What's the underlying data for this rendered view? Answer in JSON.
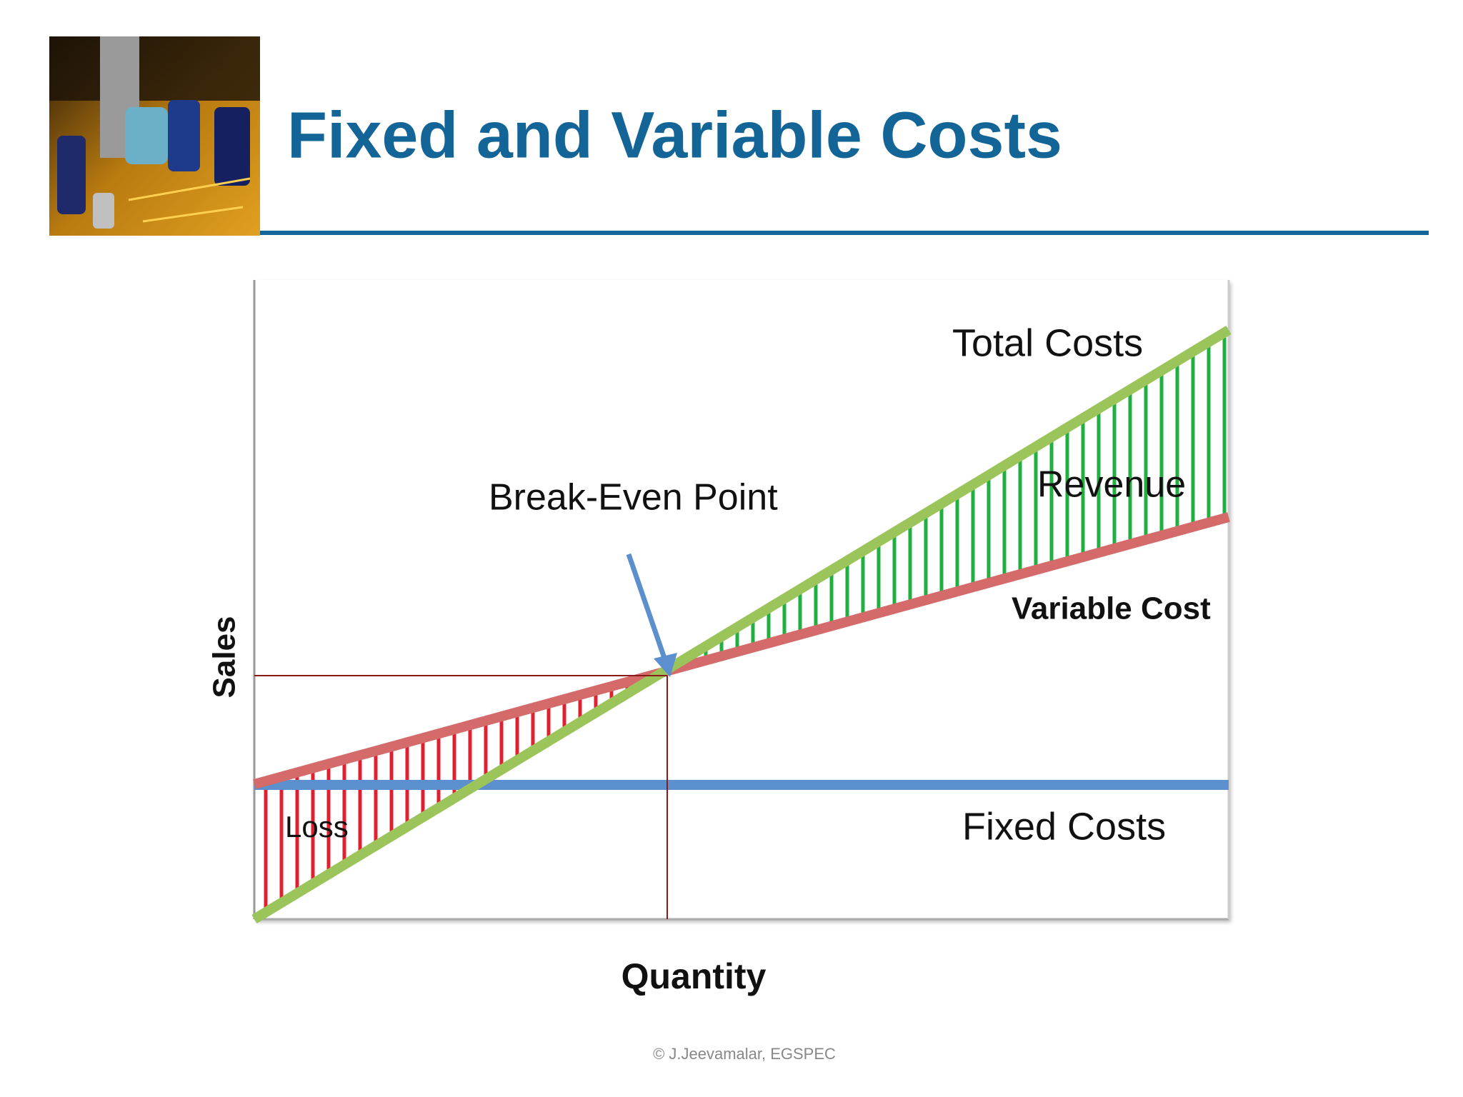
{
  "header": {
    "title": "Fixed and Variable Costs"
  },
  "diagram": {
    "labels": {
      "total_costs": "Total Costs",
      "break_even": "Break-Even Point",
      "revenue": "Revenue",
      "variable_cost": "Variable Cost",
      "fixed_costs": "Fixed Costs",
      "loss": "Loss"
    },
    "y_axis_label": "Sales",
    "x_axis_label": "Quantity"
  },
  "footer": "© J.Jeevamalar,  EGSPEC"
}
